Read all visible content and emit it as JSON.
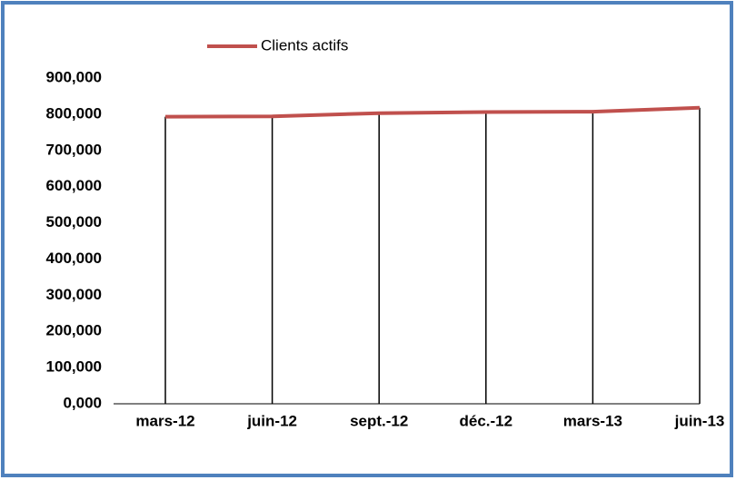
{
  "chart_data": {
    "type": "line",
    "categories": [
      "mars-12",
      "juin-12",
      "sept.-12",
      "déc.-12",
      "mars-13",
      "juin-13"
    ],
    "series": [
      {
        "name": "Clients actifs",
        "color": "#c0504d",
        "values": [
          793000,
          794000,
          803000,
          806000,
          807000,
          818000
        ]
      }
    ],
    "ylim": [
      0,
      900000
    ],
    "yticks": [
      {
        "value": 0,
        "label": "0,000"
      },
      {
        "value": 100000,
        "label": "100,000"
      },
      {
        "value": 200000,
        "label": "200,000"
      },
      {
        "value": 300000,
        "label": "300,000"
      },
      {
        "value": 400000,
        "label": "400,000"
      },
      {
        "value": 500000,
        "label": "500,000"
      },
      {
        "value": 600000,
        "label": "600,000"
      },
      {
        "value": 700000,
        "label": "700,000"
      },
      {
        "value": 800000,
        "label": "800,000"
      },
      {
        "value": 900000,
        "label": "900,000"
      }
    ],
    "drop_lines": true
  }
}
